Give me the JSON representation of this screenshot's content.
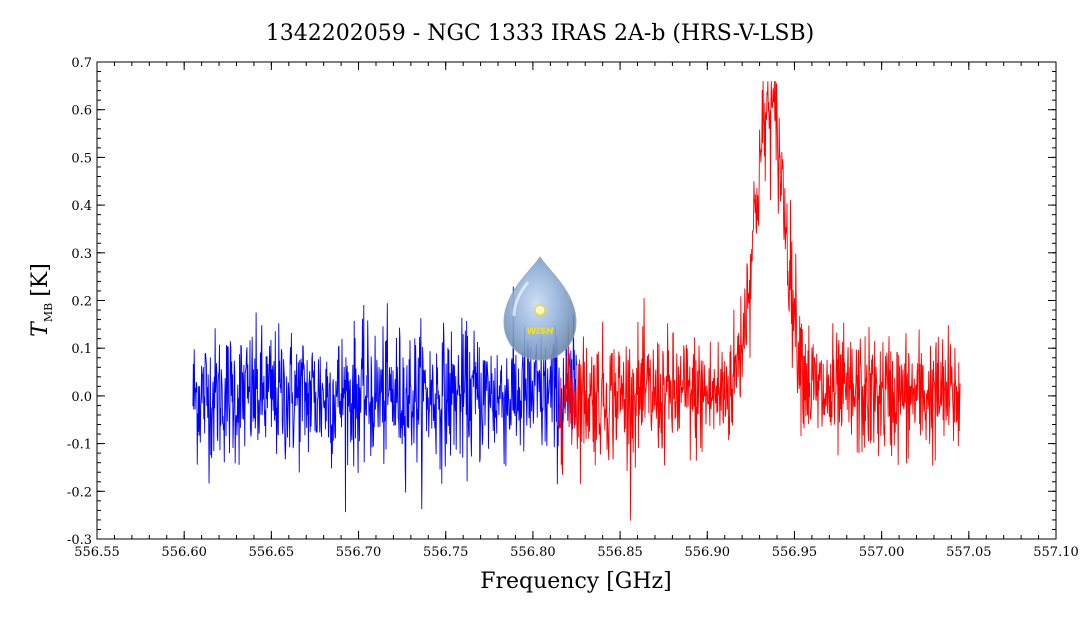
{
  "chart_data": {
    "type": "line",
    "title": "1342202059 - NGC 1333 IRAS 2A-b (HRS-V-LSB)",
    "xlabel": "Frequency [GHz]",
    "ylabel_main": "T",
    "ylabel_sub": "MB",
    "ylabel_unit": "[K]",
    "xlim": [
      556.55,
      557.1
    ],
    "ylim": [
      -0.3,
      0.7
    ],
    "xticks": [
      "556.55",
      "556.60",
      "556.65",
      "556.70",
      "556.75",
      "556.80",
      "556.85",
      "556.90",
      "556.95",
      "557.00",
      "557.05",
      "557.10"
    ],
    "xtick_values": [
      556.55,
      556.6,
      556.65,
      556.7,
      556.75,
      556.8,
      556.85,
      556.9,
      556.95,
      557.0,
      557.05,
      557.1
    ],
    "yticks": [
      "-0.3",
      "-0.2",
      "-0.1",
      "0.0",
      "0.1",
      "0.2",
      "0.3",
      "0.4",
      "0.5",
      "0.6",
      "0.7"
    ],
    "ytick_values": [
      -0.3,
      -0.2,
      -0.1,
      0.0,
      0.1,
      0.2,
      0.3,
      0.4,
      0.5,
      0.6,
      0.7
    ],
    "grid": false,
    "series": [
      {
        "color": "#0000ff",
        "x_range": [
          556.605,
          556.825
        ],
        "noise_rms": 0.07,
        "baseline": 0.0
      },
      {
        "color": "#ff0000",
        "x_range": [
          556.815,
          557.045
        ],
        "noise_rms": 0.065,
        "baseline": 0.0,
        "peak": {
          "center": 556.936,
          "amplitude": 0.6,
          "width": 0.009
        }
      }
    ]
  },
  "logo": {
    "text": "WISH"
  }
}
